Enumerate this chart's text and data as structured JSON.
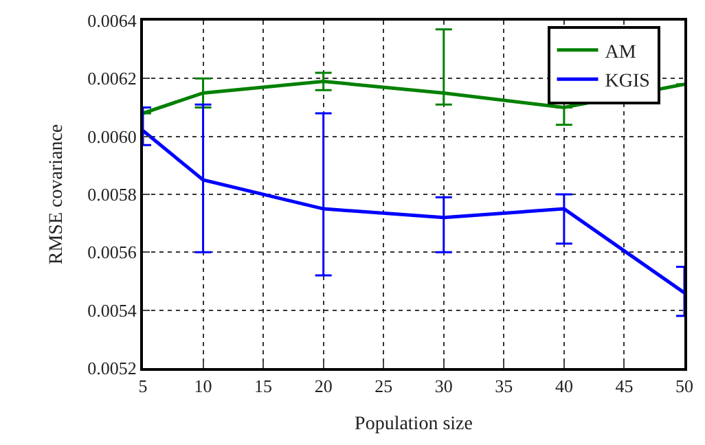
{
  "chart_data": {
    "type": "line",
    "xlabel": "Population size",
    "ylabel": "RMSE covariance",
    "x": [
      5,
      10,
      20,
      30,
      40,
      50
    ],
    "series": [
      {
        "name": "AM",
        "color": "#008000",
        "values": [
          0.00608,
          0.00615,
          0.00619,
          0.00615,
          0.0061,
          0.00618
        ],
        "errors": [
          null,
          [
            0.0061,
            0.0062
          ],
          [
            0.00616,
            0.00622
          ],
          [
            0.00611,
            0.00637
          ],
          [
            0.00604,
            0.0061
          ],
          null
        ]
      },
      {
        "name": "KGIS",
        "color": "#0000ff",
        "values": [
          0.00602,
          0.00585,
          0.00575,
          0.00572,
          0.00575,
          0.00546
        ],
        "errors": [
          [
            0.00597,
            0.0061
          ],
          [
            0.0056,
            0.00611
          ],
          [
            0.00552,
            0.00608
          ],
          [
            0.0056,
            0.00579
          ],
          [
            0.00563,
            0.0058
          ],
          [
            0.00538,
            0.00555
          ]
        ]
      }
    ],
    "xlim": [
      5,
      50
    ],
    "xticks": [
      5,
      10,
      15,
      20,
      25,
      30,
      35,
      40,
      45,
      50
    ],
    "ylim": [
      0.0052,
      0.0064
    ],
    "yticks": [
      0.0052,
      0.0054,
      0.0056,
      0.0058,
      {
        "value": 0.006,
        "label": "0.0060"
      },
      0.0062,
      0.0064
    ],
    "grid": true,
    "legend": "top right",
    "marker": "none",
    "line_style": "solid"
  }
}
